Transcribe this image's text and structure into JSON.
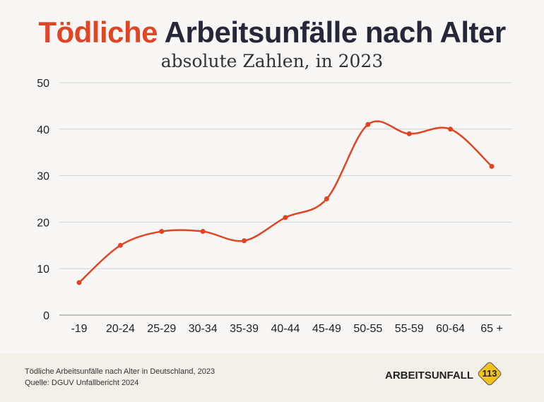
{
  "header": {
    "title_accent": "Tödliche",
    "title_rest": "Arbeitsunfälle nach Alter",
    "subtitle": "absolute Zahlen, in 2023"
  },
  "chart_data": {
    "type": "line",
    "title": "Tödliche Arbeitsunfälle nach Alter",
    "subtitle": "absolute Zahlen, in 2023",
    "categories": [
      "-19",
      "20-24",
      "25-29",
      "30-34",
      "35-39",
      "40-44",
      "45-49",
      "50-55",
      "55-59",
      "60-64",
      "65 +"
    ],
    "values": [
      7,
      15,
      18,
      18,
      16,
      21,
      25,
      41,
      39,
      40,
      32
    ],
    "yticks": [
      0,
      10,
      20,
      30,
      40,
      50
    ],
    "ylim": [
      0,
      50
    ],
    "xlabel": "",
    "ylabel": "",
    "grid": true,
    "color": "#e04524"
  },
  "footer": {
    "note": "Tödliche Arbeitsunfälle nach Alter in Deutschland, 2023",
    "source": "Quelle: DGUV Unfallbericht 2024",
    "brand": "ARBEITSUNFALL",
    "badge": "113"
  }
}
